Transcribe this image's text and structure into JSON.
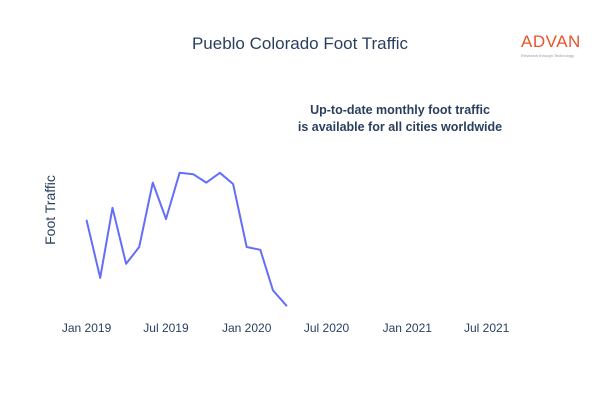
{
  "chart_data": {
    "type": "line",
    "title": "Pueblo Colorado Foot Traffic",
    "ylabel": "Foot Traffic",
    "xlabel": "",
    "annotation": [
      "Up-to-date monthly foot traffic",
      "is available for all cities worldwide"
    ],
    "x_ticks": [
      "Jan 2019",
      "Jul 2019",
      "Jan 2020",
      "Jul 2020",
      "Jan 2021",
      "Jul 2021"
    ],
    "xlim": [
      "2018-12-17",
      "2021-09-15"
    ],
    "ylim": [
      0,
      100
    ],
    "y_tick_labels_shown": false,
    "grid": false,
    "series": [
      {
        "color": "#636efa",
        "x": [
          "2019-01-01",
          "2019-02-01",
          "2019-03-01",
          "2019-04-01",
          "2019-05-01",
          "2019-06-01",
          "2019-07-01",
          "2019-08-01",
          "2019-09-01",
          "2019-10-01",
          "2019-11-01",
          "2019-12-01",
          "2020-01-01",
          "2020-02-01",
          "2020-03-01",
          "2020-04-01"
        ],
        "values": [
          64,
          23,
          73,
          33,
          45,
          91,
          65,
          98,
          97,
          91,
          98,
          90,
          45,
          43,
          14,
          3
        ]
      }
    ]
  },
  "brand": {
    "name": "ADVAN",
    "tagline": "Research through Technology"
  }
}
